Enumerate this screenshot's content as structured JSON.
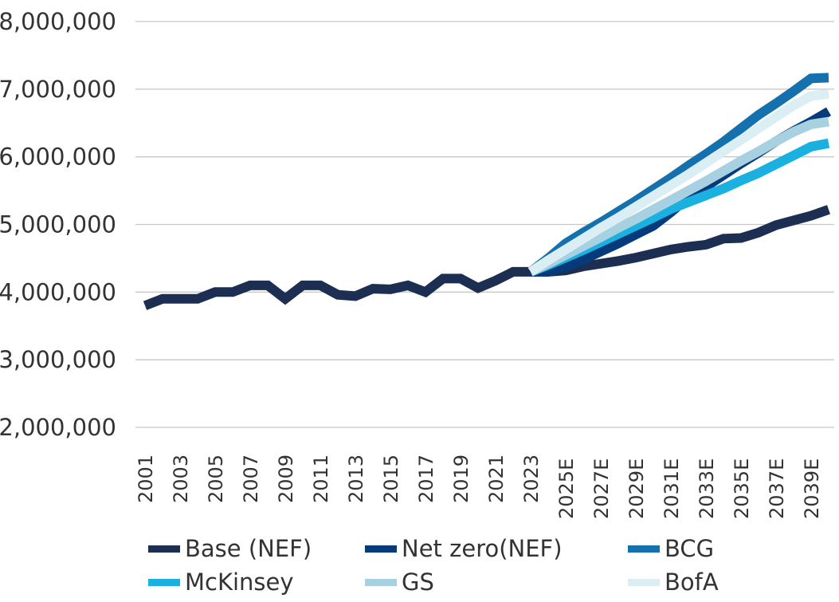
{
  "chart_data": {
    "type": "line",
    "title": "",
    "xlabel": "",
    "ylabel": "",
    "ylim": [
      2000000,
      8000000
    ],
    "yticks": [
      2000000,
      3000000,
      4000000,
      5000000,
      6000000,
      7000000,
      8000000
    ],
    "ytick_labels": [
      "2,000,000",
      "3,000,000",
      "4,000,000",
      "5,000,000",
      "6,000,000",
      "7,000,000",
      "8,000,000"
    ],
    "grid": true,
    "legend_position": "bottom",
    "x": [
      "2001",
      "2002",
      "2003",
      "2004",
      "2005",
      "2006",
      "2007",
      "2008",
      "2009",
      "2010",
      "2011",
      "2012",
      "2013",
      "2014",
      "2015",
      "2016",
      "2017",
      "2018",
      "2019",
      "2020",
      "2021",
      "2022",
      "2023",
      "2024E",
      "2025E",
      "2026E",
      "2027E",
      "2028E",
      "2029E",
      "2030E",
      "2031E",
      "2032E",
      "2033E",
      "2034E",
      "2035E",
      "2036E",
      "2037E",
      "2038E",
      "2039E",
      "2040E"
    ],
    "xtick_labels": [
      "2001",
      "2003",
      "2005",
      "2007",
      "2009",
      "2011",
      "2013",
      "2015",
      "2017",
      "2019",
      "2021",
      "2023",
      "2025E",
      "2027E",
      "2029E",
      "2031E",
      "2033E",
      "2035E",
      "2037E",
      "2039E"
    ],
    "series": [
      {
        "name": "Base (NEF)",
        "color": "#1c2e52",
        "values": [
          3800000,
          3900000,
          3900000,
          3900000,
          4000000,
          4000000,
          4100000,
          4100000,
          3900000,
          4100000,
          4100000,
          3960000,
          3940000,
          4050000,
          4040000,
          4100000,
          4000000,
          4200000,
          4200000,
          4060000,
          4170000,
          4300000,
          4300000,
          4300000,
          4320000,
          4380000,
          4420000,
          4460000,
          4510000,
          4570000,
          4630000,
          4670000,
          4700000,
          4790000,
          4800000,
          4880000,
          4990000,
          5060000,
          5130000,
          5220000
        ]
      },
      {
        "name": "Net zero(NEF)",
        "color": "#063a7a",
        "values": [
          null,
          null,
          null,
          null,
          null,
          null,
          null,
          null,
          null,
          null,
          null,
          null,
          null,
          null,
          null,
          null,
          null,
          null,
          null,
          null,
          null,
          null,
          4300000,
          4300000,
          4380000,
          4480000,
          4600000,
          4720000,
          4850000,
          4980000,
          5180000,
          5400000,
          5560000,
          5730000,
          5900000,
          6060000,
          6230000,
          6380000,
          6520000,
          6670000
        ]
      },
      {
        "name": "BCG",
        "color": "#1471ad",
        "values": [
          null,
          null,
          null,
          null,
          null,
          null,
          null,
          null,
          null,
          null,
          null,
          null,
          null,
          null,
          null,
          null,
          null,
          null,
          null,
          null,
          null,
          null,
          4300000,
          4500000,
          4720000,
          4880000,
          5030000,
          5190000,
          5350000,
          5520000,
          5690000,
          5870000,
          6040000,
          6220000,
          6420000,
          6620000,
          6790000,
          6970000,
          7160000,
          7170000
        ]
      },
      {
        "name": "McKinsey",
        "color": "#1ab0e0",
        "values": [
          null,
          null,
          null,
          null,
          null,
          null,
          null,
          null,
          null,
          null,
          null,
          null,
          null,
          null,
          null,
          null,
          null,
          null,
          null,
          null,
          null,
          null,
          4300000,
          4400000,
          4510000,
          4620000,
          4740000,
          4860000,
          4980000,
          5100000,
          5230000,
          5330000,
          5430000,
          5530000,
          5650000,
          5760000,
          5890000,
          6020000,
          6150000,
          6200000
        ]
      },
      {
        "name": "GS",
        "color": "#a7d1e0",
        "values": [
          null,
          null,
          null,
          null,
          null,
          null,
          null,
          null,
          null,
          null,
          null,
          null,
          null,
          null,
          null,
          null,
          null,
          null,
          null,
          null,
          null,
          null,
          4300000,
          4420000,
          4550000,
          4680000,
          4810000,
          4950000,
          5080000,
          5220000,
          5360000,
          5500000,
          5640000,
          5790000,
          5940000,
          6080000,
          6230000,
          6370000,
          6480000,
          6520000
        ]
      },
      {
        "name": "BofA",
        "color": "#daeef4",
        "values": [
          null,
          null,
          null,
          null,
          null,
          null,
          null,
          null,
          null,
          null,
          null,
          null,
          null,
          null,
          null,
          null,
          null,
          null,
          null,
          null,
          null,
          null,
          4300000,
          4470000,
          4630000,
          4790000,
          4950000,
          5100000,
          5260000,
          5420000,
          5580000,
          5740000,
          5910000,
          6080000,
          6250000,
          6420000,
          6590000,
          6760000,
          6900000,
          6930000
        ]
      }
    ]
  },
  "legend": {
    "items": [
      {
        "label": "Base (NEF)",
        "color": "#1c2e52"
      },
      {
        "label": "Net zero(NEF)",
        "color": "#063a7a"
      },
      {
        "label": "BCG",
        "color": "#1471ad"
      },
      {
        "label": "McKinsey",
        "color": "#1ab0e0"
      },
      {
        "label": "GS",
        "color": "#a7d1e0"
      },
      {
        "label": "BofA",
        "color": "#daeef4"
      }
    ]
  },
  "colors": {
    "gridline": "#c8c8c8",
    "text": "#333333"
  }
}
